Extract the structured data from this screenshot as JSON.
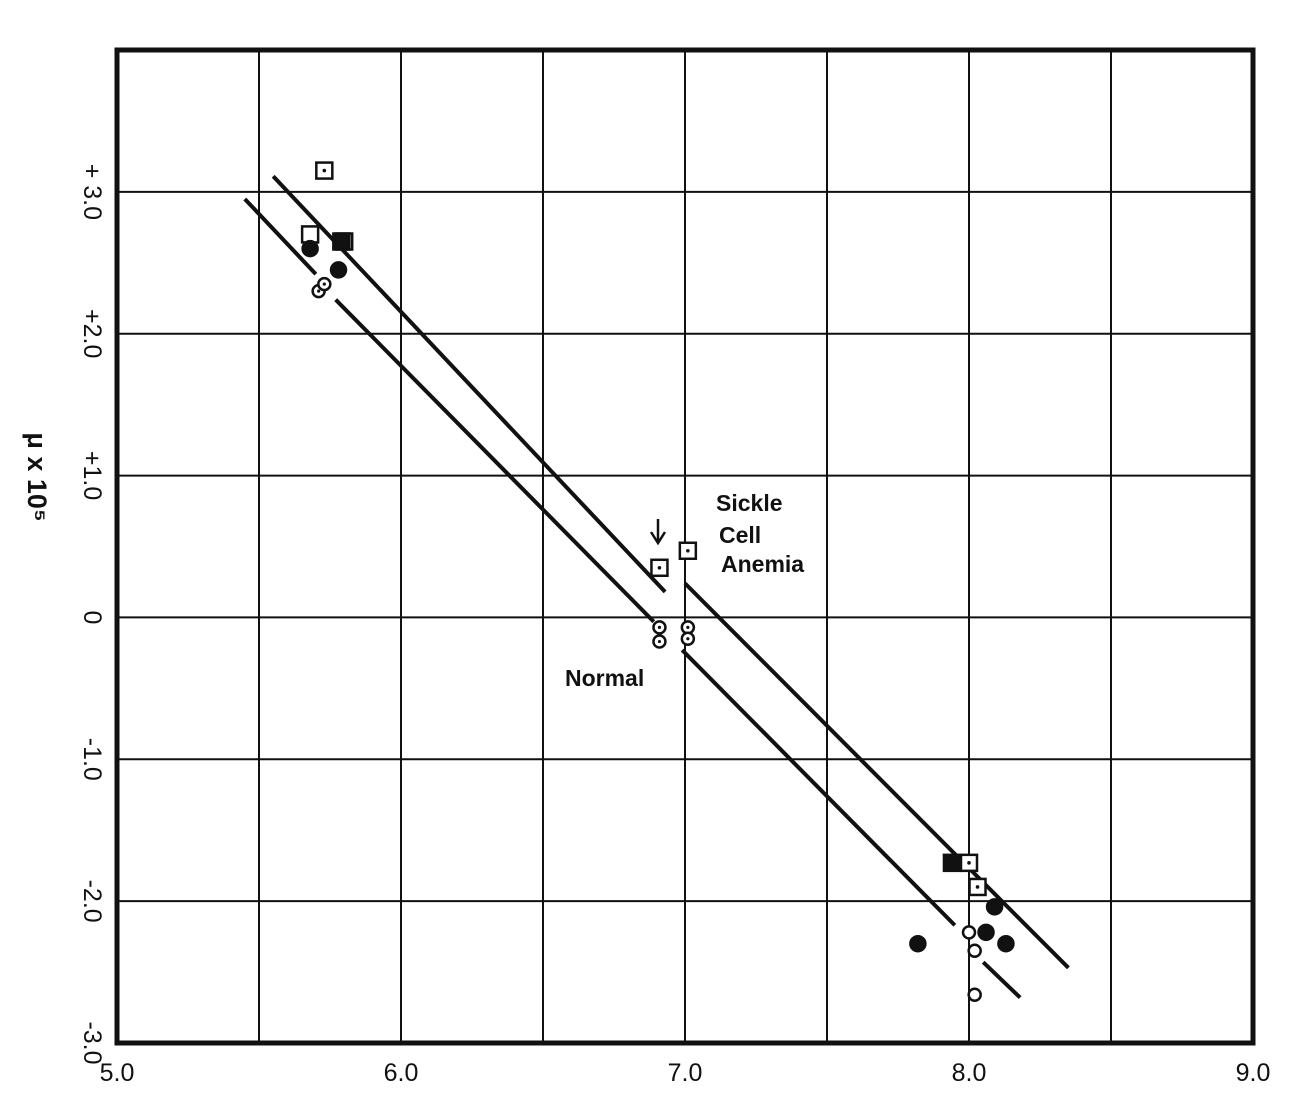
{
  "chart_data": {
    "type": "scatter",
    "title": "",
    "xlabel": "",
    "ylabel": "μ x 10⁵",
    "xlim": [
      5.0,
      9.0
    ],
    "ylim": [
      -3.0,
      4.0
    ],
    "grid": true,
    "x_ticks": [
      "5.0",
      "6.0",
      "7.0",
      "8.0",
      "9.0"
    ],
    "y_ticks": [
      "-3.0",
      "-2.0",
      "-1.0",
      "0",
      "+1.0",
      "+2.0",
      "+ 3.0"
    ],
    "annotations": [
      "Sickle Cell Anemia",
      "Normal"
    ],
    "series": [
      {
        "name": "Sickle Cell Anemia",
        "marker": "square-dot",
        "points": [
          {
            "x": 5.73,
            "y": 3.15
          },
          {
            "x": 5.8,
            "y": 2.65
          },
          {
            "x": 6.91,
            "y": 0.35
          },
          {
            "x": 7.01,
            "y": 0.47
          },
          {
            "x": 8.0,
            "y": -1.73
          },
          {
            "x": 8.03,
            "y": -1.9
          }
        ]
      },
      {
        "name": "",
        "marker": "square-open",
        "points": [
          {
            "x": 5.68,
            "y": 2.7
          }
        ]
      },
      {
        "name": "",
        "marker": "square-filled",
        "points": [
          {
            "x": 5.79,
            "y": 2.65
          },
          {
            "x": 7.94,
            "y": -1.73
          }
        ]
      },
      {
        "name": "Normal",
        "marker": "circle-dot",
        "points": [
          {
            "x": 5.71,
            "y": 2.3
          },
          {
            "x": 5.73,
            "y": 2.35
          },
          {
            "x": 6.91,
            "y": -0.07
          },
          {
            "x": 6.91,
            "y": -0.17
          },
          {
            "x": 7.01,
            "y": -0.07
          },
          {
            "x": 7.01,
            "y": -0.15
          }
        ]
      },
      {
        "name": "",
        "marker": "circle-open",
        "points": [
          {
            "x": 8.0,
            "y": -2.22
          },
          {
            "x": 8.02,
            "y": -2.35
          },
          {
            "x": 8.02,
            "y": -2.66
          }
        ]
      },
      {
        "name": "",
        "marker": "circle-filled",
        "points": [
          {
            "x": 5.68,
            "y": 2.6
          },
          {
            "x": 5.78,
            "y": 2.45
          },
          {
            "x": 7.82,
            "y": -2.3
          },
          {
            "x": 8.06,
            "y": -2.22
          },
          {
            "x": 8.09,
            "y": -2.04
          },
          {
            "x": 8.13,
            "y": -2.3
          }
        ]
      }
    ],
    "lines": [
      {
        "name": "Sickle Cell Anemia",
        "x": [
          5.55,
          6.93
        ],
        "y": [
          3.11,
          0.18
        ]
      },
      {
        "name": "Sickle Cell Anemia",
        "x": [
          7.0,
          8.35
        ],
        "y": [
          0.24,
          -2.47
        ]
      },
      {
        "name": "Normal",
        "x": [
          5.45,
          5.7
        ],
        "y": [
          2.95,
          2.42
        ]
      },
      {
        "name": "Normal",
        "x": [
          5.77,
          6.89
        ],
        "y": [
          2.24,
          -0.03
        ]
      },
      {
        "name": "Normal",
        "x": [
          6.99,
          7.95
        ],
        "y": [
          -0.23,
          -2.17
        ]
      },
      {
        "name": "Normal",
        "x": [
          8.05,
          8.18
        ],
        "y": [
          -2.43,
          -2.68
        ]
      }
    ]
  }
}
